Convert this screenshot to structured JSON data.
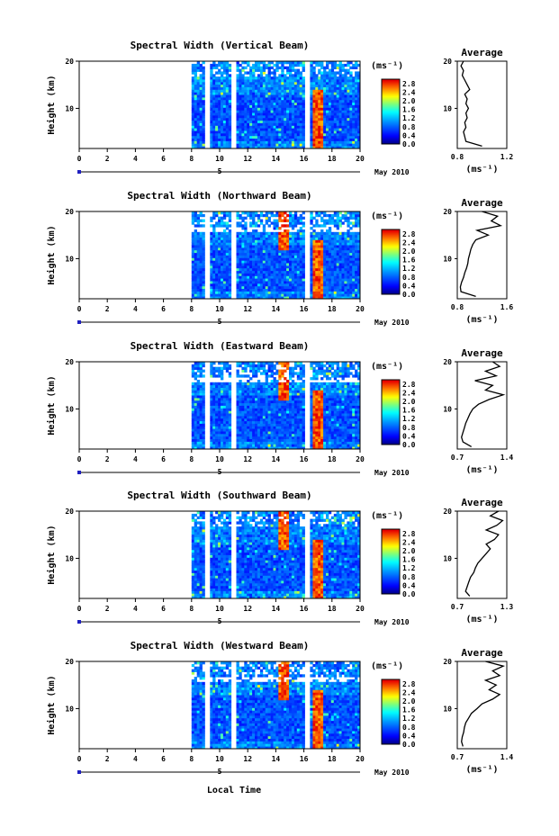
{
  "chart_data": [
    {
      "type": "heatmap",
      "title": "Spectral Width (Vertical Beam)",
      "ylabel": "Height (km)",
      "x_ticks": [
        "0",
        "2",
        "4",
        "6",
        "8",
        "10",
        "12",
        "14",
        "16",
        "18",
        "20"
      ],
      "y_ticks": [
        "20",
        "10"
      ],
      "xlim": [
        0,
        20
      ],
      "ylim": [
        1.5,
        20
      ],
      "date_label": "May 2010",
      "day_label": "5",
      "colorbar": {
        "unit": "(ms⁻¹)",
        "ticks": [
          "2.8",
          "2.4",
          "2.0",
          "1.6",
          "1.2",
          "0.8",
          "0.4",
          "0.0"
        ],
        "range": [
          0,
          3.0
        ]
      },
      "data_start_hour": 8,
      "gaps_hours": [
        [
          8.9,
          9.4
        ],
        [
          10.8,
          11.2
        ],
        [
          16.1,
          16.4
        ]
      ],
      "upper_gap_km": null,
      "high_bands_hours": [
        17.0
      ],
      "average": {
        "title": "Average",
        "xlabel": "(ms⁻¹)",
        "x_ticks": [
          "0.8",
          "1.2"
        ],
        "xlim": [
          0.8,
          1.2
        ],
        "y_ticks": [
          "20",
          "10"
        ],
        "profile_heights_km": [
          2,
          3,
          4,
          5,
          6,
          7,
          8,
          9,
          10,
          11,
          12,
          13,
          14,
          15,
          16,
          17,
          18,
          19,
          20
        ],
        "profile_values": [
          1.0,
          0.87,
          0.86,
          0.85,
          0.87,
          0.86,
          0.88,
          0.87,
          0.89,
          0.87,
          0.88,
          0.86,
          0.9,
          0.88,
          0.86,
          0.84,
          0.85,
          0.83,
          0.85
        ]
      }
    },
    {
      "type": "heatmap",
      "title": "Spectral Width (Northward Beam)",
      "ylabel": "Height (km)",
      "x_ticks": [
        "0",
        "2",
        "4",
        "6",
        "8",
        "10",
        "12",
        "14",
        "16",
        "18",
        "20"
      ],
      "y_ticks": [
        "20",
        "10"
      ],
      "xlim": [
        0,
        20
      ],
      "ylim": [
        1.5,
        20
      ],
      "date_label": "May 2010",
      "day_label": "5",
      "colorbar": {
        "unit": "(ms⁻¹)",
        "ticks": [
          "2.8",
          "2.4",
          "2.0",
          "1.6",
          "1.2",
          "0.8",
          "0.4",
          "0.0"
        ],
        "range": [
          0,
          3.0
        ]
      },
      "data_start_hour": 8,
      "gaps_hours": [
        [
          8.9,
          9.4
        ],
        [
          10.8,
          11.2
        ],
        [
          16.1,
          16.4
        ]
      ],
      "upper_gap_km": [
        15.5,
        17.0
      ],
      "high_bands_hours": [
        14.5,
        17.0
      ],
      "average": {
        "title": "Average",
        "xlabel": "(ms⁻¹)",
        "x_ticks": [
          "0.8",
          "1.6"
        ],
        "xlim": [
          0.8,
          1.6
        ],
        "y_ticks": [
          "20",
          "10"
        ],
        "profile_heights_km": [
          2,
          3,
          4,
          5,
          6,
          7,
          8,
          9,
          10,
          11,
          12,
          13,
          14,
          15,
          16,
          17,
          18,
          19,
          20
        ],
        "profile_values": [
          1.1,
          0.86,
          0.85,
          0.87,
          0.9,
          0.92,
          0.95,
          0.97,
          0.98,
          1.0,
          1.02,
          1.05,
          1.1,
          1.3,
          1.12,
          1.5,
          1.35,
          1.45,
          1.2
        ]
      }
    },
    {
      "type": "heatmap",
      "title": "Spectral Width (Eastward Beam)",
      "ylabel": "Height (km)",
      "x_ticks": [
        "0",
        "2",
        "4",
        "6",
        "8",
        "10",
        "12",
        "14",
        "16",
        "18",
        "20"
      ],
      "y_ticks": [
        "20",
        "10"
      ],
      "xlim": [
        0,
        20
      ],
      "ylim": [
        1.5,
        20
      ],
      "date_label": "May 2010",
      "day_label": "5",
      "colorbar": {
        "unit": "(ms⁻¹)",
        "ticks": [
          "2.8",
          "2.4",
          "2.0",
          "1.6",
          "1.2",
          "0.8",
          "0.4",
          "0.0"
        ],
        "range": [
          0,
          3.0
        ]
      },
      "data_start_hour": 8,
      "gaps_hours": [
        [
          8.9,
          9.4
        ],
        [
          10.8,
          11.2
        ],
        [
          16.1,
          16.4
        ]
      ],
      "upper_gap_km": [
        15.5,
        17.0
      ],
      "high_bands_hours": [
        14.5,
        17.0
      ],
      "average": {
        "title": "Average",
        "xlabel": "(ms⁻¹)",
        "x_ticks": [
          "0.7",
          "1.4"
        ],
        "xlim": [
          0.7,
          1.4
        ],
        "y_ticks": [
          "20",
          "10"
        ],
        "profile_heights_km": [
          2,
          3,
          4,
          5,
          6,
          7,
          8,
          9,
          10,
          11,
          12,
          13,
          14,
          15,
          16,
          17,
          18,
          19,
          20
        ],
        "profile_values": [
          0.9,
          0.78,
          0.76,
          0.78,
          0.8,
          0.82,
          0.85,
          0.88,
          0.92,
          1.0,
          1.15,
          1.35,
          1.1,
          1.2,
          0.95,
          1.25,
          1.1,
          1.3,
          1.2
        ]
      }
    },
    {
      "type": "heatmap",
      "title": "Spectral Width (Southward Beam)",
      "ylabel": "Height (km)",
      "x_ticks": [
        "0",
        "2",
        "4",
        "6",
        "8",
        "10",
        "12",
        "14",
        "16",
        "18",
        "20"
      ],
      "y_ticks": [
        "20",
        "10"
      ],
      "xlim": [
        0,
        20
      ],
      "ylim": [
        1.5,
        20
      ],
      "date_label": "May 2010",
      "day_label": "5",
      "colorbar": {
        "unit": "(ms⁻¹)",
        "ticks": [
          "2.8",
          "2.4",
          "2.0",
          "1.6",
          "1.2",
          "0.8",
          "0.4",
          "0.0"
        ],
        "range": [
          0,
          3.0
        ]
      },
      "data_start_hour": 8,
      "gaps_hours": [
        [
          8.9,
          9.4
        ],
        [
          10.8,
          11.2
        ],
        [
          16.1,
          16.4
        ]
      ],
      "upper_gap_km": null,
      "high_bands_hours": [
        14.5,
        17.0
      ],
      "average": {
        "title": "Average",
        "xlabel": "(ms⁻¹)",
        "x_ticks": [
          "0.7",
          "1.3"
        ],
        "xlim": [
          0.7,
          1.3
        ],
        "y_ticks": [
          "20",
          "10"
        ],
        "profile_heights_km": [
          2,
          3,
          4,
          5,
          6,
          7,
          8,
          9,
          10,
          11,
          12,
          13,
          14,
          15,
          16,
          17,
          18,
          19,
          20
        ],
        "profile_values": [
          0.85,
          0.8,
          0.82,
          0.84,
          0.86,
          0.9,
          0.92,
          0.95,
          1.0,
          1.05,
          1.1,
          1.05,
          1.15,
          1.2,
          1.05,
          1.18,
          1.25,
          1.1,
          1.2
        ]
      }
    },
    {
      "type": "heatmap",
      "title": "Spectral Width (Westward Beam)",
      "ylabel": "Height (km)",
      "x_ticks": [
        "0",
        "2",
        "4",
        "6",
        "8",
        "10",
        "12",
        "14",
        "16",
        "18",
        "20"
      ],
      "y_ticks": [
        "20",
        "10"
      ],
      "xlim": [
        0,
        20
      ],
      "ylim": [
        1.5,
        20
      ],
      "date_label": "May 2010",
      "day_label": "5",
      "colorbar": {
        "unit": "(ms⁻¹)",
        "ticks": [
          "2.8",
          "2.4",
          "2.0",
          "1.6",
          "1.2",
          "0.8",
          "0.4",
          "0.0"
        ],
        "range": [
          0,
          3.0
        ]
      },
      "data_start_hour": 8,
      "gaps_hours": [
        [
          8.9,
          9.4
        ],
        [
          10.8,
          11.2
        ],
        [
          16.1,
          16.4
        ]
      ],
      "upper_gap_km": [
        15.5,
        17.0
      ],
      "high_bands_hours": [
        14.5,
        17.0
      ],
      "average": {
        "title": "Average",
        "xlabel": "(ms⁻¹)",
        "x_ticks": [
          "0.7",
          "1.4"
        ],
        "xlim": [
          0.7,
          1.4
        ],
        "y_ticks": [
          "20",
          "10"
        ],
        "profile_heights_km": [
          2,
          3,
          4,
          5,
          6,
          7,
          8,
          9,
          10,
          11,
          12,
          13,
          14,
          15,
          16,
          17,
          18,
          19,
          20
        ],
        "profile_values": [
          0.78,
          0.76,
          0.77,
          0.79,
          0.8,
          0.82,
          0.86,
          0.9,
          0.98,
          1.05,
          1.2,
          1.3,
          1.15,
          1.25,
          1.1,
          1.3,
          1.2,
          1.35,
          1.1
        ]
      }
    }
  ],
  "footer": {
    "xlabel": "Local Time"
  },
  "colors": {
    "low": "#1a1aa0",
    "mid": "#2060ff",
    "high": "#ff3030"
  }
}
